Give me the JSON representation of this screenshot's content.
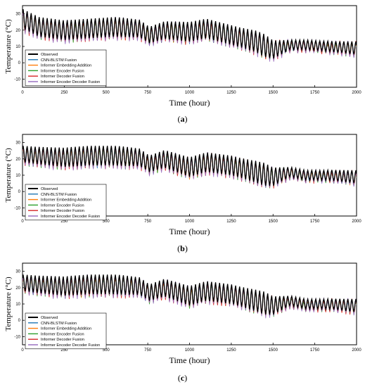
{
  "chart_data": [
    {
      "type": "line",
      "panel_label": "a",
      "caption": "(a)",
      "xlabel": "Time (hour)",
      "ylabel": "Temperature (°C)",
      "xlim": [
        0,
        2000
      ],
      "ylim": [
        -15,
        35
      ],
      "xticks": [
        0,
        250,
        500,
        750,
        1000,
        1250,
        1500,
        1750,
        2000
      ],
      "yticks": [
        -10,
        0,
        10,
        20,
        30
      ],
      "legend_position": "lower-left",
      "observed_trend": {
        "x": [
          0,
          100,
          250,
          400,
          550,
          700,
          760,
          850,
          1000,
          1100,
          1250,
          1400,
          1500,
          1600,
          1700,
          1850,
          2000
        ],
        "y": [
          27,
          22,
          20,
          21,
          22,
          21,
          17,
          20,
          19,
          21,
          17,
          13,
          8,
          11,
          11,
          10,
          9
        ]
      },
      "observed_amplitude": {
        "x": [
          0,
          300,
          600,
          750,
          1000,
          1300,
          1450,
          1600,
          1800,
          2000
        ],
        "y": [
          6,
          6,
          6,
          5,
          6,
          6,
          7,
          3,
          3,
          4
        ]
      },
      "series": [
        {
          "name": "Observed",
          "color": "#000000"
        },
        {
          "name": "CNN-BLSTM Fusion",
          "color": "#1f77b4"
        },
        {
          "name": "Informer Embedding Addition",
          "color": "#ff7f0e"
        },
        {
          "name": "Informer Encoder Fusion",
          "color": "#2ca02c"
        },
        {
          "name": "Informer Decoder Fusion",
          "color": "#d62728"
        },
        {
          "name": "Informer Encoder Decoder Fusion",
          "color": "#9467bd"
        }
      ]
    },
    {
      "type": "line",
      "panel_label": "b",
      "caption": "(b)",
      "xlabel": "Time (hour)",
      "ylabel": "Temperature (°C)",
      "xlim": [
        0,
        2000
      ],
      "ylim": [
        -15,
        35
      ],
      "xticks": [
        0,
        250,
        500,
        750,
        1000,
        1250,
        1500,
        1750,
        2000
      ],
      "yticks": [
        -10,
        0,
        10,
        20,
        30
      ],
      "legend_position": "lower-left",
      "observed_trend": {
        "x": [
          0,
          100,
          250,
          400,
          550,
          700,
          760,
          850,
          1000,
          1100,
          1250,
          1400,
          1500,
          1600,
          1700,
          1850,
          2000
        ],
        "y": [
          23,
          22,
          21,
          22,
          22,
          21,
          17,
          20,
          15,
          18,
          16,
          12,
          9,
          12,
          10,
          10,
          9
        ]
      },
      "observed_amplitude": {
        "x": [
          0,
          300,
          600,
          750,
          1000,
          1300,
          1450,
          1600,
          1800,
          2000
        ],
        "y": [
          5,
          6,
          6,
          5,
          6,
          6,
          7,
          3,
          3,
          4
        ]
      },
      "series": [
        {
          "name": "Observed",
          "color": "#000000"
        },
        {
          "name": "CNN-BLSTM Fusion",
          "color": "#1f77b4"
        },
        {
          "name": "Informer Embedding Addition",
          "color": "#ff7f0e"
        },
        {
          "name": "Informer Encoder Fusion",
          "color": "#2ca02c"
        },
        {
          "name": "Informer Decoder Fusion",
          "color": "#d62728"
        },
        {
          "name": "Informer Encoder Decoder Fusion",
          "color": "#9467bd"
        }
      ]
    },
    {
      "type": "line",
      "panel_label": "c",
      "caption": "(c)",
      "xlabel": "Time (hour)",
      "ylabel": "Temperature (°C)",
      "xlim": [
        0,
        2000
      ],
      "ylim": [
        -15,
        35
      ],
      "xticks": [
        0,
        250,
        500,
        750,
        1000,
        1250,
        1500,
        1750,
        2000
      ],
      "yticks": [
        -10,
        0,
        10,
        20,
        30
      ],
      "legend_position": "lower-left",
      "observed_trend": {
        "x": [
          0,
          100,
          250,
          400,
          550,
          700,
          760,
          850,
          1000,
          1100,
          1250,
          1400,
          1500,
          1600,
          1700,
          1850,
          2000
        ],
        "y": [
          23,
          22,
          21,
          22,
          22,
          21,
          17,
          20,
          15,
          18,
          16,
          12,
          9,
          12,
          10,
          10,
          9
        ]
      },
      "observed_amplitude": {
        "x": [
          0,
          300,
          600,
          750,
          1000,
          1300,
          1450,
          1600,
          1800,
          2000
        ],
        "y": [
          5,
          6,
          6,
          5,
          6,
          6,
          7,
          3,
          3,
          4
        ]
      },
      "series": [
        {
          "name": "Observed",
          "color": "#000000"
        },
        {
          "name": "CNN-BLSTM Fusion",
          "color": "#1f77b4"
        },
        {
          "name": "Informer Embedding Addition",
          "color": "#ff7f0e"
        },
        {
          "name": "Informer Encoder Fusion",
          "color": "#2ca02c"
        },
        {
          "name": "Informer Decoder Fusion",
          "color": "#d62728"
        },
        {
          "name": "Informer Encoder Decoder Fusion",
          "color": "#9467bd"
        }
      ]
    }
  ]
}
